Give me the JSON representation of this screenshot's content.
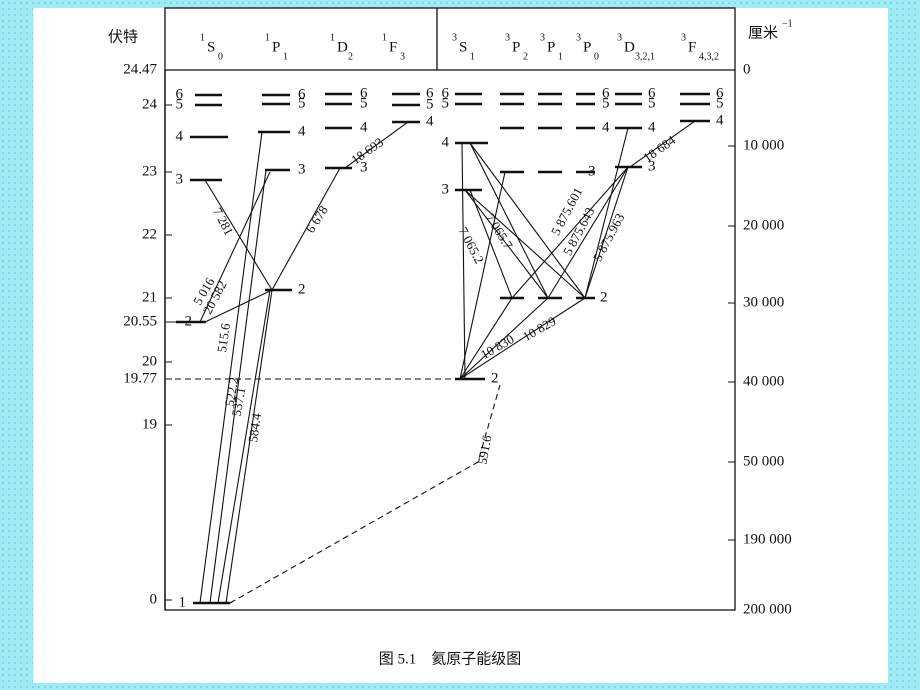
{
  "header": {
    "left_unit": "伏特",
    "right_unit": "厘米",
    "right_unit_exp": "−1"
  },
  "columns": [
    {
      "sup": "1",
      "term": "S",
      "sub": "0"
    },
    {
      "sup": "1",
      "term": "P",
      "sub": "1"
    },
    {
      "sup": "1",
      "term": "D",
      "sub": "2"
    },
    {
      "sup": "1",
      "term": "F",
      "sub": "3"
    },
    {
      "sup": "3",
      "term": "S",
      "sub": "1"
    },
    {
      "sup": "3",
      "term": "P",
      "sub": "2"
    },
    {
      "sup": "3",
      "term": "P",
      "sub": "1"
    },
    {
      "sup": "3",
      "term": "P",
      "sub": "0"
    },
    {
      "sup": "3",
      "term": "D",
      "sub": "3,2,1"
    },
    {
      "sup": "3",
      "term": "F",
      "sub": "4,3,2"
    }
  ],
  "left_axis": [
    "24.47",
    "24",
    "23",
    "22",
    "21",
    "20.55",
    "20",
    "19.77",
    "19",
    "0"
  ],
  "right_axis": [
    "0",
    "10 000",
    "20 000",
    "30 000",
    "40 000",
    "50 000",
    "190 000",
    "200 000"
  ],
  "levels": [
    "1",
    "2",
    "3",
    "4",
    "5",
    "6",
    "2",
    "3",
    "4",
    "5",
    "6",
    "3",
    "4",
    "5",
    "6",
    "4",
    "5",
    "6",
    "2",
    "3",
    "4",
    "5",
    "6",
    "2",
    "3",
    "4",
    "5",
    "6",
    "3",
    "4",
    "5",
    "6",
    "4",
    "5",
    "6"
  ],
  "transitions": [
    "7 281",
    "5 016",
    "20 582",
    "515.6",
    "522.2",
    "537.1",
    "584.4",
    "6 678",
    "18 693",
    "7 065.7",
    "7 065.2",
    "5 875.601",
    "5 875.643",
    "5 875.963",
    "10 830",
    "10 829",
    "18 684",
    "591.6"
  ],
  "caption": "图 5.1　氦原子能级图"
}
